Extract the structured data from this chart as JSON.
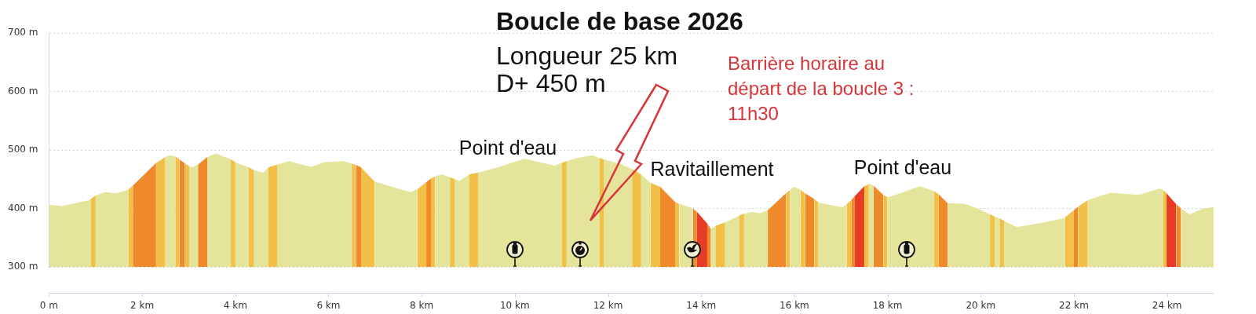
{
  "chart_data": {
    "type": "area",
    "title": "Boucle de base 2026",
    "subtitle": "Longueur 25 km\nD+ 450 m",
    "x": [
      0,
      0.28,
      0.86,
      0.9,
      1,
      1.21,
      1.44,
      1.7,
      1.8,
      2.3,
      2.5,
      2.6,
      2.71,
      2.8,
      2.92,
      3.01,
      3.06,
      3.2,
      3.4,
      3.59,
      3.9,
      4,
      4.29,
      4.4,
      4.6,
      4.71,
      4.9,
      5.15,
      5.62,
      5.91,
      6.31,
      6.5,
      6.59,
      6.7,
      6.99,
      7.36,
      7.76,
      7.91,
      8.1,
      8.2,
      8.29,
      8.44,
      8.61,
      8.71,
      8.81,
      9.02,
      9.21,
      9.63,
      10.21,
      10.85,
      11.01,
      11.11,
      11.32,
      11.66,
      11.82,
      11.91,
      12.3,
      12.52,
      12.71,
      12.91,
      13.12,
      13.44,
      13.53,
      13.82,
      13.91,
      14.13,
      14.21,
      14.31,
      14.51,
      14.82,
      14.92,
      15.1,
      15.27,
      15.43,
      15.82,
      15.91,
      16,
      16.13,
      16.23,
      16.43,
      16.52,
      16.83,
      17.04,
      17.12,
      17.22,
      17.3,
      17.5,
      17.6,
      17.7,
      17.91,
      18,
      18.27,
      18.69,
      18.99,
      19.1,
      19.29,
      19.65,
      20.02,
      20.2,
      20.3,
      20.41,
      20.5,
      20.77,
      21.28,
      21.76,
      21.81,
      22,
      22.09,
      22.3,
      22.78,
      23.39,
      23.84,
      23.91,
      23.99,
      24.2,
      24.3,
      24.48,
      24.78,
      25
    ],
    "series": [
      {
        "color": "#e4e59a",
        "values": [
          406,
          404,
          414,
          416,
          422,
          428,
          426,
          432,
          null,
          null,
          488,
          491,
          489,
          null,
          null,
          472,
          470,
          475,
          488,
          494,
          484,
          479,
          470,
          465,
          461,
          470,
          475,
          481,
          471,
          479,
          481,
          477,
          null,
          null,
          446,
          437,
          428,
          433,
          null,
          null,
          455,
          458,
          453,
          450,
          447,
          458,
          461,
          470,
          485,
          473,
          478,
          481,
          486,
          491,
          486,
          484,
          475,
          467,
          458,
          444,
          null,
          null,
          408,
          400,
          null,
          null,
          365,
          370,
          376,
          388,
          391,
          394,
          392,
          397,
          null,
          432,
          437,
          432,
          null,
          null,
          410,
          405,
          402,
          407,
          null,
          null,
          null,
          442,
          439,
          null,
          419,
          426,
          438,
          430,
          null,
          409,
          408,
          397,
          390,
          386,
          383,
          379,
          368,
          375,
          383,
          385,
          null,
          null,
          414,
          427,
          423,
          434,
          432,
          null,
          null,
          400,
          390,
          400,
          402
        ]
      },
      {
        "color": "#f2c049",
        "x": [
          0.9,
          1,
          null,
          1.7,
          1.8,
          null,
          2.3,
          2.5,
          null,
          2.71,
          2.8,
          null,
          2.92,
          3.01,
          null,
          3.9,
          4,
          null,
          4.29,
          4.4,
          null,
          4.71,
          4.9,
          null,
          6.5,
          6.59,
          null,
          6.7,
          6.99,
          null,
          7.91,
          8.1,
          null,
          8.2,
          8.29,
          null,
          8.61,
          8.71,
          null,
          9.02,
          9.21,
          null,
          11.01,
          11.11,
          null,
          11.82,
          11.91,
          null,
          12.52,
          12.71,
          null,
          12.91,
          13.12,
          null,
          13.44,
          13.53,
          null,
          14.31,
          14.51,
          null,
          14.82,
          14.92,
          null,
          15.82,
          15.91,
          null,
          16.13,
          16.23,
          null,
          16.43,
          16.52,
          null,
          17.12,
          17.22,
          null,
          17.5,
          17.6,
          null,
          17.91,
          18,
          null,
          18.99,
          19.1,
          null,
          20.2,
          20.3,
          null,
          20.41,
          20.5,
          null,
          21.81,
          22,
          null,
          22.09,
          22.3,
          null,
          23.91,
          23.99
        ],
        "values": [
          416,
          422,
          null,
          432,
          439,
          null,
          478,
          488,
          null,
          489,
          484,
          null,
          477,
          472,
          null,
          484,
          479,
          null,
          470,
          465,
          null,
          470,
          475,
          null,
          477,
          474,
          null,
          470,
          446,
          null,
          433,
          445,
          null,
          451,
          455,
          null,
          453,
          450,
          null,
          458,
          461,
          null,
          478,
          481,
          null,
          486,
          484,
          null,
          467,
          458,
          null,
          444,
          437,
          null,
          411,
          408,
          null,
          370,
          376,
          null,
          388,
          391,
          null,
          426,
          432,
          null,
          432,
          426,
          null,
          416,
          410,
          null,
          407,
          414,
          null,
          438,
          442,
          null,
          423,
          419,
          null,
          430,
          424,
          null,
          390,
          386,
          null,
          383,
          379,
          null,
          385,
          397,
          null,
          403,
          414,
          null,
          432,
          426
        ]
      },
      {
        "color": "#ef8a2b",
        "x": [
          1.8,
          2.3,
          null,
          2.8,
          2.92,
          null,
          3.2,
          3.4,
          null,
          6.59,
          6.7,
          null,
          8.1,
          8.2,
          null,
          13.12,
          13.44,
          null,
          13.82,
          13.91,
          null,
          14.13,
          14.21,
          null,
          15.43,
          15.82,
          null,
          16.23,
          16.43,
          null,
          17.22,
          17.3,
          null,
          17.7,
          17.91,
          null,
          19.1,
          19.29,
          null,
          22,
          22.09,
          null,
          24.2,
          24.3
        ],
        "values": [
          439,
          478,
          null,
          484,
          477,
          null,
          475,
          488,
          null,
          474,
          470,
          null,
          445,
          451,
          null,
          437,
          411,
          null,
          400,
          394,
          null,
          374,
          365,
          null,
          397,
          426,
          null,
          426,
          416,
          null,
          414,
          421,
          null,
          439,
          423,
          null,
          424,
          409,
          null,
          397,
          403,
          null,
          407,
          400
        ]
      },
      {
        "color": "#e63b24",
        "x": [
          13.91,
          14.13,
          null,
          17.3,
          17.5,
          null,
          23.99,
          24.2
        ],
        "values": [
          394,
          374,
          null,
          421,
          438,
          null,
          426,
          407
        ]
      }
    ],
    "xlim": [
      0,
      25
    ],
    "xticks": [
      {
        "value": 0,
        "label": "0 m"
      },
      {
        "value": 2,
        "label": "2 km"
      },
      {
        "value": 4,
        "label": "4 km"
      },
      {
        "value": 6,
        "label": "6 km"
      },
      {
        "value": 8,
        "label": "8 km"
      },
      {
        "value": 10,
        "label": "10 km"
      },
      {
        "value": 12,
        "label": "12 km"
      },
      {
        "value": 14,
        "label": "14 km"
      },
      {
        "value": 16,
        "label": "16 km"
      },
      {
        "value": 18,
        "label": "18 km"
      },
      {
        "value": 20,
        "label": "20 km"
      },
      {
        "value": 22,
        "label": "22 km"
      },
      {
        "value": 24,
        "label": "24 km"
      }
    ],
    "ylim": [
      300,
      700
    ],
    "yticks": [
      {
        "value": 300,
        "label": "300 m"
      },
      {
        "value": 400,
        "label": "400 m"
      },
      {
        "value": 500,
        "label": "500 m"
      },
      {
        "value": 600,
        "label": "600 m"
      },
      {
        "value": 700,
        "label": "700 m"
      }
    ],
    "grid": "y",
    "annotations": [
      "Point d'eau",
      "Ravitaillement",
      "Point d'eau",
      "Barrière horaire au départ de la boucle 3 : 11h30"
    ]
  }
}
